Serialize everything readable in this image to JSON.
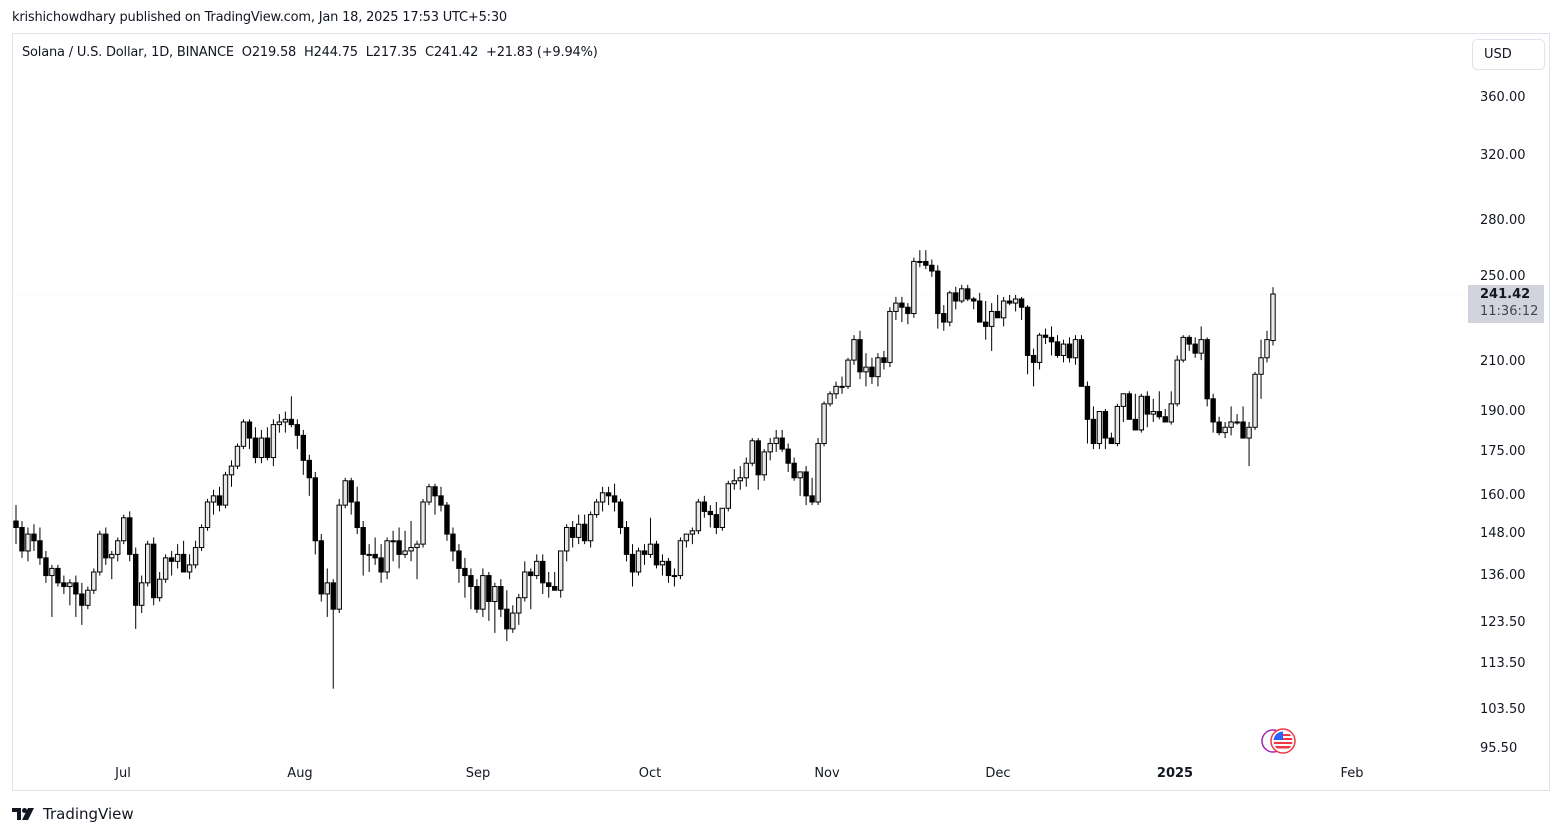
{
  "publication": {
    "text": "krishichowdhary published on TradingView.com, Jan 18, 2025 17:53 UTC+5:30"
  },
  "legend": {
    "symbol": "Solana / U.S. Dollar, 1D, BINANCE",
    "open_label": "O",
    "open": "219.58",
    "high_label": "H",
    "high": "244.75",
    "low_label": "L",
    "low": "217.35",
    "close_label": "C",
    "close": "241.42",
    "change": "+21.83 (+9.94%)"
  },
  "currency_button": "USD",
  "price_badge": {
    "price": "241.42",
    "countdown": "11:36:12"
  },
  "brand": {
    "name": "TradingView"
  },
  "colors": {
    "up_fill": "#e8e9ec",
    "down_fill": "#000000",
    "outline": "#000000",
    "badge": "#d1d4dc",
    "border": "#e0e3eb"
  },
  "chart_data": {
    "type": "candlestick",
    "title": "Solana / U.S. Dollar, 1D, BINANCE",
    "xlabel": "",
    "ylabel": "USD",
    "scale": "log",
    "ylim": [
      92,
      380
    ],
    "grid": false,
    "y_ticks": [
      "360.00",
      "320.00",
      "280.00",
      "250.00",
      "210.00",
      "190.00",
      "175.00",
      "160.00",
      "148.00",
      "136.00",
      "123.50",
      "113.50",
      "103.50",
      "95.50"
    ],
    "x_ticks": [
      "Jul",
      "Aug",
      "Sep",
      "Oct",
      "Nov",
      "Dec",
      "2025",
      "Feb"
    ],
    "last_price": 241.42,
    "candles_ohlc": [
      [
        152,
        157,
        145,
        150
      ],
      [
        150,
        152,
        141,
        143
      ],
      [
        143,
        150,
        140,
        148
      ],
      [
        148,
        151,
        143,
        146
      ],
      [
        146,
        150,
        139,
        141
      ],
      [
        141,
        143,
        134,
        136
      ],
      [
        136,
        139,
        125,
        138
      ],
      [
        138,
        139,
        133,
        134
      ],
      [
        134,
        136,
        131,
        133
      ],
      [
        133,
        135,
        128,
        134
      ],
      [
        134,
        136,
        125,
        131
      ],
      [
        131,
        134,
        123,
        128
      ],
      [
        128,
        133,
        127,
        132
      ],
      [
        132,
        138,
        131,
        137
      ],
      [
        137,
        149,
        136,
        148
      ],
      [
        148,
        150,
        139,
        141
      ],
      [
        141,
        143,
        135,
        142
      ],
      [
        142,
        147,
        140,
        146
      ],
      [
        146,
        154,
        145,
        153
      ],
      [
        153,
        155,
        140,
        142
      ],
      [
        142,
        144,
        122,
        128
      ],
      [
        128,
        136,
        126,
        134
      ],
      [
        134,
        146,
        133,
        145
      ],
      [
        145,
        147,
        128,
        130
      ],
      [
        130,
        137,
        129,
        135
      ],
      [
        135,
        142,
        134,
        141
      ],
      [
        141,
        143,
        136,
        140
      ],
      [
        140,
        145,
        138,
        142
      ],
      [
        142,
        146,
        138,
        137
      ],
      [
        137,
        142,
        135,
        139
      ],
      [
        139,
        146,
        138,
        144
      ],
      [
        144,
        151,
        143,
        150
      ],
      [
        150,
        159,
        149,
        158
      ],
      [
        158,
        162,
        154,
        160
      ],
      [
        160,
        163,
        155,
        157
      ],
      [
        157,
        168,
        156,
        167
      ],
      [
        167,
        172,
        163,
        170
      ],
      [
        170,
        178,
        169,
        177
      ],
      [
        177,
        187,
        176,
        186
      ],
      [
        186,
        187,
        176,
        180
      ],
      [
        180,
        184,
        171,
        173
      ],
      [
        173,
        183,
        171,
        180
      ],
      [
        180,
        184,
        172,
        173
      ],
      [
        173,
        187,
        170,
        185
      ],
      [
        185,
        189,
        182,
        186
      ],
      [
        186,
        190,
        182,
        187
      ],
      [
        187,
        196,
        184,
        185
      ],
      [
        185,
        187,
        176,
        181
      ],
      [
        181,
        183,
        167,
        172
      ],
      [
        172,
        174,
        160,
        166
      ],
      [
        166,
        168,
        142,
        146
      ],
      [
        146,
        148,
        129,
        131
      ],
      [
        131,
        138,
        125,
        134
      ],
      [
        134,
        135,
        108,
        127
      ],
      [
        127,
        159,
        126,
        157
      ],
      [
        157,
        166,
        156,
        165
      ],
      [
        165,
        166,
        154,
        158
      ],
      [
        158,
        163,
        148,
        150
      ],
      [
        150,
        152,
        136,
        142
      ],
      [
        142,
        145,
        137,
        142
      ],
      [
        142,
        147,
        139,
        141
      ],
      [
        141,
        145,
        134,
        137
      ],
      [
        137,
        147,
        135,
        146
      ],
      [
        146,
        149,
        140,
        146
      ],
      [
        146,
        150,
        138,
        142
      ],
      [
        142,
        149,
        141,
        143
      ],
      [
        143,
        152,
        140,
        144
      ],
      [
        144,
        146,
        135,
        145
      ],
      [
        145,
        159,
        144,
        158
      ],
      [
        158,
        164,
        157,
        163
      ],
      [
        163,
        164,
        154,
        160
      ],
      [
        160,
        163,
        155,
        157
      ],
      [
        157,
        158,
        146,
        148
      ],
      [
        148,
        150,
        140,
        143
      ],
      [
        143,
        145,
        134,
        138
      ],
      [
        138,
        141,
        130,
        136
      ],
      [
        136,
        138,
        127,
        133
      ],
      [
        133,
        135,
        126,
        127
      ],
      [
        127,
        138,
        125,
        136
      ],
      [
        136,
        137,
        124,
        129
      ],
      [
        129,
        134,
        121,
        133
      ],
      [
        133,
        135,
        125,
        127
      ],
      [
        127,
        132,
        119,
        122
      ],
      [
        122,
        128,
        121,
        126
      ],
      [
        126,
        131,
        123,
        130
      ],
      [
        130,
        140,
        129,
        137
      ],
      [
        137,
        138,
        127,
        136
      ],
      [
        136,
        142,
        135,
        140
      ],
      [
        140,
        142,
        131,
        134
      ],
      [
        134,
        137,
        130,
        133
      ],
      [
        133,
        137,
        132,
        132
      ],
      [
        132,
        142,
        130,
        143
      ],
      [
        143,
        151,
        140,
        150
      ],
      [
        150,
        152,
        144,
        147
      ],
      [
        147,
        154,
        145,
        151
      ],
      [
        151,
        154,
        145,
        146
      ],
      [
        146,
        155,
        144,
        154
      ],
      [
        154,
        159,
        153,
        158
      ],
      [
        158,
        163,
        155,
        161
      ],
      [
        161,
        163,
        157,
        160
      ],
      [
        160,
        164,
        155,
        158
      ],
      [
        158,
        159,
        148,
        150
      ],
      [
        150,
        152,
        140,
        142
      ],
      [
        142,
        145,
        133,
        137
      ],
      [
        137,
        144,
        136,
        143
      ],
      [
        143,
        145,
        139,
        142
      ],
      [
        142,
        153,
        141,
        145
      ],
      [
        145,
        146,
        138,
        139
      ],
      [
        139,
        142,
        136,
        140
      ],
      [
        140,
        141,
        134,
        136
      ],
      [
        136,
        138,
        133,
        136
      ],
      [
        136,
        147,
        135,
        146
      ],
      [
        146,
        148,
        144,
        148
      ],
      [
        148,
        150,
        145,
        149
      ],
      [
        149,
        159,
        148,
        158
      ],
      [
        158,
        160,
        153,
        155
      ],
      [
        155,
        157,
        150,
        154
      ],
      [
        154,
        158,
        148,
        150
      ],
      [
        150,
        156,
        149,
        156
      ],
      [
        156,
        165,
        155,
        164
      ],
      [
        164,
        169,
        162,
        165
      ],
      [
        165,
        170,
        162,
        166
      ],
      [
        166,
        173,
        163,
        171
      ],
      [
        171,
        180,
        170,
        179
      ],
      [
        179,
        180,
        162,
        167
      ],
      [
        167,
        176,
        165,
        175
      ],
      [
        175,
        180,
        172,
        178
      ],
      [
        178,
        183,
        175,
        180
      ],
      [
        180,
        183,
        175,
        176
      ],
      [
        176,
        178,
        168,
        171
      ],
      [
        171,
        173,
        165,
        166
      ],
      [
        166,
        168,
        160,
        168
      ],
      [
        168,
        170,
        157,
        160
      ],
      [
        160,
        166,
        157,
        158
      ],
      [
        158,
        180,
        157,
        178
      ],
      [
        178,
        194,
        177,
        193
      ],
      [
        193,
        198,
        192,
        197
      ],
      [
        197,
        202,
        195,
        200
      ],
      [
        200,
        204,
        197,
        200
      ],
      [
        200,
        212,
        199,
        211
      ],
      [
        211,
        222,
        209,
        220
      ],
      [
        220,
        224,
        203,
        206
      ],
      [
        206,
        214,
        200,
        208
      ],
      [
        208,
        212,
        201,
        204
      ],
      [
        204,
        214,
        200,
        212
      ],
      [
        212,
        215,
        207,
        210
      ],
      [
        210,
        235,
        208,
        233
      ],
      [
        233,
        240,
        229,
        237
      ],
      [
        237,
        240,
        228,
        235
      ],
      [
        235,
        237,
        227,
        232
      ],
      [
        232,
        260,
        230,
        258
      ],
      [
        258,
        264,
        255,
        258
      ],
      [
        258,
        264,
        254,
        256
      ],
      [
        256,
        259,
        250,
        253
      ],
      [
        253,
        256,
        225,
        232
      ],
      [
        232,
        236,
        224,
        228
      ],
      [
        228,
        243,
        226,
        242
      ],
      [
        242,
        245,
        234,
        238
      ],
      [
        238,
        246,
        237,
        244
      ],
      [
        244,
        246,
        238,
        239
      ],
      [
        239,
        240,
        234,
        238
      ],
      [
        238,
        242,
        232,
        228
      ],
      [
        228,
        238,
        220,
        226
      ],
      [
        226,
        237,
        215,
        233
      ],
      [
        233,
        241,
        231,
        230
      ],
      [
        230,
        240,
        226,
        238
      ],
      [
        238,
        241,
        236,
        237
      ],
      [
        237,
        241,
        233,
        239
      ],
      [
        239,
        240,
        229,
        235
      ],
      [
        235,
        236,
        205,
        213
      ],
      [
        213,
        216,
        200,
        210
      ],
      [
        210,
        223,
        207,
        222
      ],
      [
        222,
        225,
        218,
        221
      ],
      [
        221,
        226,
        213,
        219
      ],
      [
        219,
        222,
        212,
        213
      ],
      [
        213,
        220,
        210,
        218
      ],
      [
        218,
        221,
        210,
        212
      ],
      [
        212,
        222,
        209,
        220
      ],
      [
        220,
        222,
        200,
        200
      ],
      [
        200,
        202,
        178,
        187
      ],
      [
        187,
        192,
        176,
        178
      ],
      [
        178,
        190,
        176,
        190
      ],
      [
        190,
        191,
        176,
        180
      ],
      [
        180,
        182,
        178,
        178
      ],
      [
        178,
        193,
        177,
        192
      ],
      [
        192,
        196,
        186,
        197
      ],
      [
        197,
        198,
        188,
        187
      ],
      [
        187,
        197,
        183,
        183
      ],
      [
        183,
        197,
        182,
        196
      ],
      [
        196,
        198,
        184,
        189
      ],
      [
        189,
        195,
        186,
        190
      ],
      [
        190,
        198,
        187,
        188
      ],
      [
        188,
        191,
        186,
        186
      ],
      [
        186,
        198,
        185,
        193
      ],
      [
        193,
        213,
        192,
        211
      ],
      [
        211,
        222,
        210,
        221
      ],
      [
        221,
        222,
        215,
        218
      ],
      [
        218,
        221,
        212,
        214
      ],
      [
        214,
        226,
        211,
        220
      ],
      [
        220,
        221,
        192,
        195
      ],
      [
        195,
        197,
        182,
        186
      ],
      [
        186,
        188,
        181,
        182
      ],
      [
        182,
        186,
        180,
        184
      ],
      [
        184,
        192,
        181,
        186
      ],
      [
        186,
        189,
        185,
        186
      ],
      [
        186,
        192,
        182,
        180
      ],
      [
        180,
        186,
        170,
        184
      ],
      [
        184,
        206,
        183,
        205
      ],
      [
        205,
        220,
        195,
        212
      ],
      [
        212,
        224,
        210,
        220
      ],
      [
        219.58,
        244.75,
        217.35,
        241.42
      ]
    ]
  }
}
